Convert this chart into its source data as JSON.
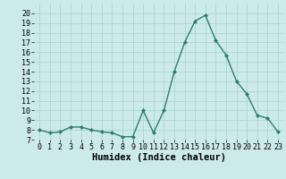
{
  "x": [
    0,
    1,
    2,
    3,
    4,
    5,
    6,
    7,
    8,
    9,
    10,
    11,
    12,
    13,
    14,
    15,
    16,
    17,
    18,
    19,
    20,
    21,
    22,
    23
  ],
  "y": [
    8.0,
    7.7,
    7.8,
    8.3,
    8.3,
    8.0,
    7.8,
    7.7,
    7.3,
    7.3,
    10.0,
    7.7,
    10.0,
    14.0,
    17.0,
    19.2,
    19.8,
    17.2,
    15.7,
    13.0,
    11.7,
    9.5,
    9.2,
    7.8
  ],
  "xlabel": "Humidex (Indice chaleur)",
  "ylim": [
    7,
    21
  ],
  "xlim": [
    -0.5,
    23.5
  ],
  "yticks": [
    7,
    8,
    9,
    10,
    11,
    12,
    13,
    14,
    15,
    16,
    17,
    18,
    19,
    20
  ],
  "xticks": [
    0,
    1,
    2,
    3,
    4,
    5,
    6,
    7,
    8,
    9,
    10,
    11,
    12,
    13,
    14,
    15,
    16,
    17,
    18,
    19,
    20,
    21,
    22,
    23
  ],
  "line_color": "#2d7d6f",
  "marker_color": "#2d7d6f",
  "bg_color": "#cdeaea",
  "grid_color": "#b0d4d4",
  "xlabel_fontsize": 7.5,
  "tick_fontsize": 6,
  "title_fontsize": 7
}
